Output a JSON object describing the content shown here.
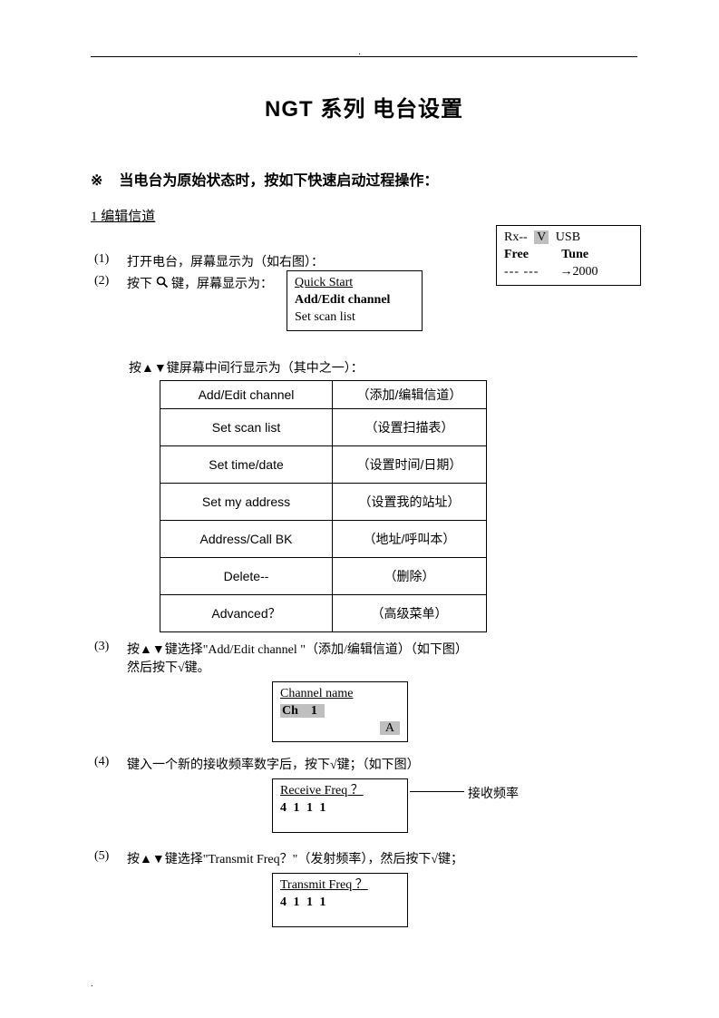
{
  "marks": {
    "topdot": ".",
    "botdot": "."
  },
  "title": "NGT    系列    电台设置",
  "intro": {
    "sym": "※",
    "text": "当电台为原始状态时，按如下快速启动过程操作："
  },
  "section1": "1 编辑信道",
  "steps": {
    "s1": {
      "num": "(1)",
      "text": "打开电台，屏幕显示为（如右图）："
    },
    "s2": {
      "num": "(2)",
      "prefix": "按下",
      "suffix": "键，屏幕显示为："
    },
    "s2b": "按▲▼键屏幕中间行显示为（其中之一）：",
    "s3": {
      "num": "(3)",
      "line1": "按▲▼键选择\"Add/Edit channel \"（添加/编辑信道）（如下图）",
      "line2": "然后按下√键。"
    },
    "s4": {
      "num": "(4)",
      "text": "键入一个新的接收频率数字后，按下√键；（如下图）"
    },
    "s5": {
      "num": "(5)",
      "text": "按▲▼键选择\"Transmit    Freq？\"（发射频率），然后按下√键；"
    }
  },
  "disp1": {
    "row1_left": "Rx--",
    "row1_v": "V",
    "row1_right": "USB",
    "row2_left": "Free",
    "row2_right": "Tune",
    "row3_left": "--- ---",
    "row3_right": "→2000"
  },
  "disp2": {
    "l1": "Quick    Start",
    "l2": "Add/Edit channel",
    "l3": "Set scan list"
  },
  "menu": {
    "rows": [
      {
        "en": "Add/Edit channel",
        "zh": "（添加/编辑信道）"
      },
      {
        "en": "Set scan list",
        "zh": "（设置扫描表）"
      },
      {
        "en": "Set time/date",
        "zh": "（设置时间/日期）"
      },
      {
        "en": "Set my address",
        "zh": "（设置我的站址）"
      },
      {
        "en": "Address/Call BK",
        "zh": "（地址/呼叫本）"
      },
      {
        "en": "Delete--",
        "zh": "（删除）"
      },
      {
        "en": "Advanced？",
        "zh": "（高级菜单）"
      }
    ]
  },
  "disp3": {
    "l1": "Channel      name",
    "l2a": "Ch",
    "l2b": "1",
    "l3": "A"
  },
  "disp4": {
    "l1": "Receive    Freq    ？",
    "l2": "4 1 1 1",
    "callout": "接收频率"
  },
  "disp5": {
    "l1": "Transmit    Freq    ？",
    "l2": "4 1 1 1"
  },
  "colors": {
    "text": "#000000",
    "hl": "#bfbfbf",
    "bg": "#ffffff"
  }
}
